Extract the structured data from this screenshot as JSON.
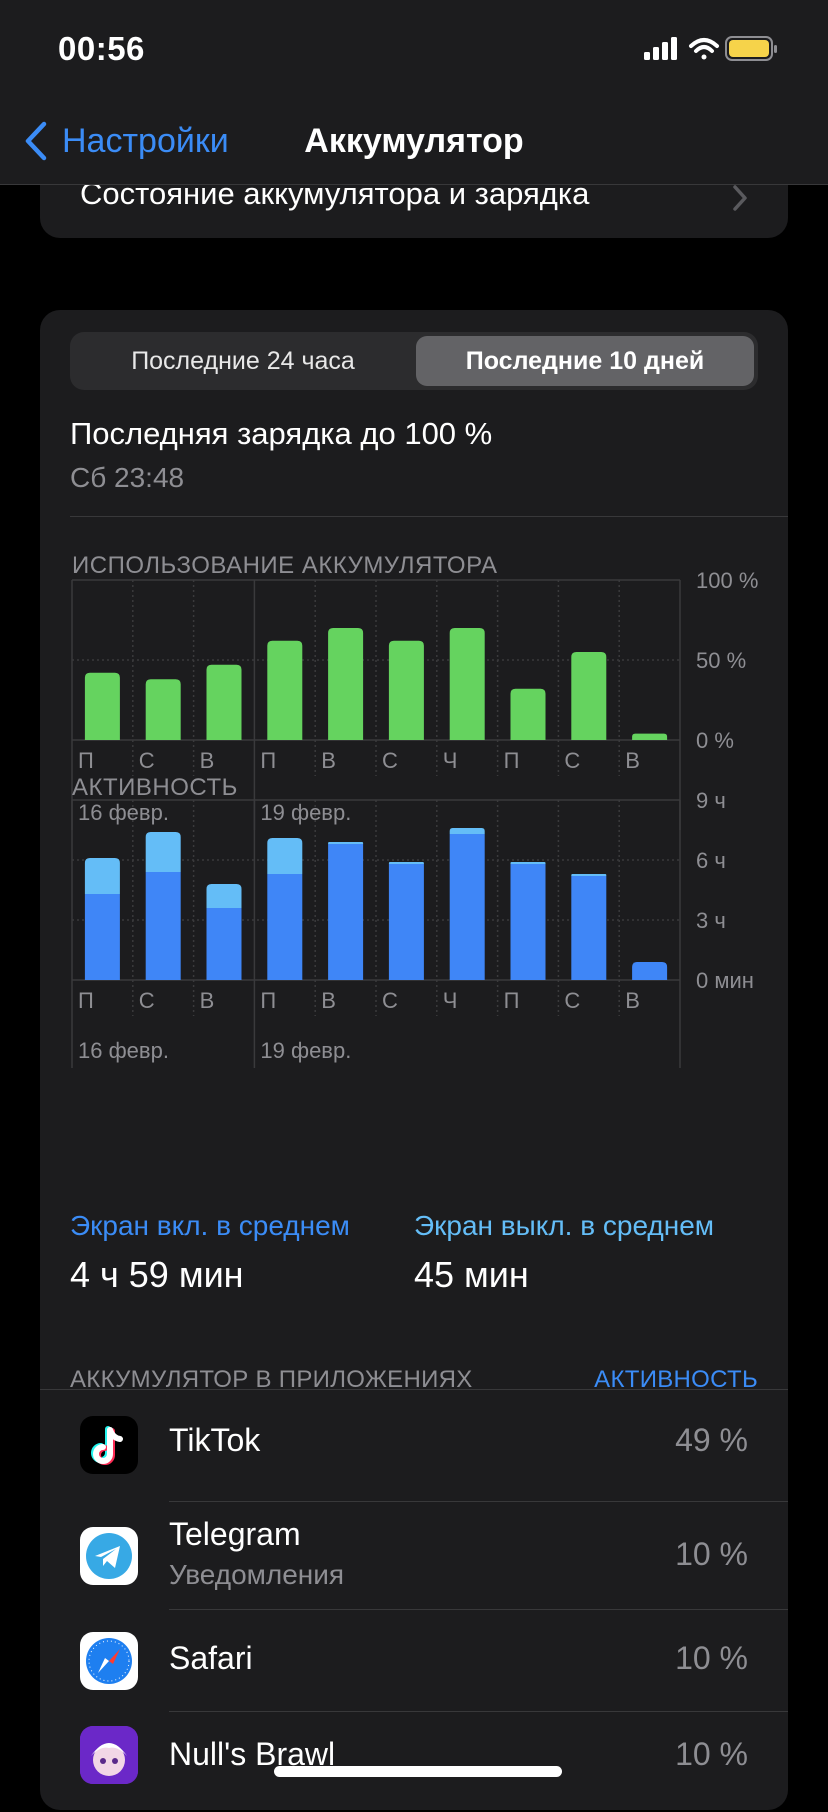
{
  "status_bar": {
    "time": "00:56"
  },
  "nav": {
    "back_label": "Настройки",
    "title": "Аккумулятор"
  },
  "health_row": {
    "label": "Состояние аккумулятора и зарядка"
  },
  "segment": {
    "left": "Последние 24 часа",
    "right": "Последние 10 дней",
    "selected": "right"
  },
  "last_charge": {
    "title": "Последняя зарядка до 100 %",
    "time": "Сб 23:48"
  },
  "usage_section": {
    "title": "ИСПОЛЬЗОВАНИЕ АККУМУЛЯТОРА"
  },
  "activity_section": {
    "title": "АКТИВНОСТЬ"
  },
  "chart_data": [
    {
      "type": "bar",
      "title": "ИСПОЛЬЗОВАНИЕ АККУМУЛЯТОРА",
      "categories": [
        "П",
        "С",
        "В",
        "П",
        "В",
        "С",
        "Ч",
        "П",
        "С",
        "В"
      ],
      "values": [
        42,
        38,
        47,
        62,
        70,
        62,
        70,
        32,
        55,
        4
      ],
      "y_ticks": [
        "100 %",
        "50 %",
        "0 %"
      ],
      "ylim": [
        0,
        100
      ],
      "date_labels": [
        {
          "text": "16 февр.",
          "index": 0
        },
        {
          "text": "19 февр.",
          "index": 3
        }
      ],
      "color": "#65d35f"
    },
    {
      "type": "bar",
      "title": "АКТИВНОСТЬ",
      "stacked": true,
      "categories": [
        "П",
        "С",
        "В",
        "П",
        "В",
        "С",
        "Ч",
        "П",
        "С",
        "В"
      ],
      "series": [
        {
          "name": "Экран вкл.",
          "values": [
            4.3,
            5.4,
            3.6,
            5.3,
            6.8,
            5.8,
            7.3,
            5.8,
            5.2,
            0.9
          ]
        },
        {
          "name": "Экран выкл.",
          "values": [
            1.8,
            2.0,
            1.2,
            1.8,
            0.1,
            0.1,
            0.3,
            0.1,
            0.1,
            0.0
          ]
        }
      ],
      "y_ticks": [
        "9 ч",
        "6 ч",
        "3 ч",
        "0 мин"
      ],
      "ylim": [
        0,
        9
      ],
      "date_labels": [
        {
          "text": "16 февр.",
          "index": 0
        },
        {
          "text": "19 февр.",
          "index": 3
        }
      ],
      "colors": [
        "#3f86f7",
        "#64bdf7"
      ]
    }
  ],
  "averages": {
    "screen_on_label": "Экран вкл. в среднем",
    "screen_on_value": "4 ч 59 мин",
    "screen_off_label": "Экран выкл. в среднем",
    "screen_off_value": "45 мин"
  },
  "apps_section": {
    "title": "АККУМУЛЯТОР В ПРИЛОЖЕНИЯХ",
    "link": "АКТИВНОСТЬ"
  },
  "apps": [
    {
      "name": "TikTok",
      "subtitle": "",
      "percent": "49 %",
      "icon": "tiktok-icon"
    },
    {
      "name": "Telegram",
      "subtitle": "Уведомления",
      "percent": "10 %",
      "icon": "telegram-icon"
    },
    {
      "name": "Safari",
      "subtitle": "",
      "percent": "10 %",
      "icon": "safari-icon"
    },
    {
      "name": "Null's Brawl",
      "subtitle": "",
      "percent": "10 %",
      "icon": "nulls-brawl-icon"
    }
  ],
  "colors": {
    "accent": "#3b8cf6",
    "usage_bar": "#65d35f",
    "activity_on": "#3f86f7",
    "activity_off": "#64bdf7",
    "battery": "#f6d34a"
  }
}
